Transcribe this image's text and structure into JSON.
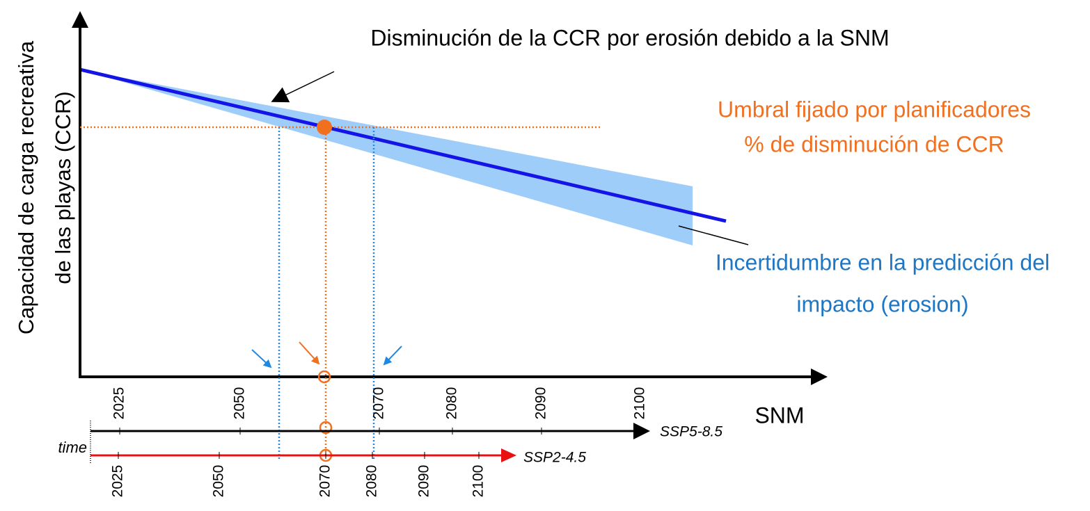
{
  "y_axis_label": [
    "Capacidad de carga recreativa",
    "de las playas (CCR)"
  ],
  "title": "Disminución de la CCR por erosión debido a la SNM",
  "threshold_label": [
    "Umbral fijado por planificadores",
    "% de disminución de CCR"
  ],
  "uncertainty_label": [
    "Incertidumbre en la predicción del",
    "impacto (erosion)"
  ],
  "x_axis_label": "SNM",
  "time_label": "time",
  "timelines": [
    {
      "name": "SSP5-8.5",
      "ticks": [
        "2025",
        "2050",
        "2070",
        "2080",
        "2090",
        "2100"
      ]
    },
    {
      "name": "SSP2-4.5",
      "ticks": [
        "2025",
        "2050",
        "2070",
        "2080",
        "2090",
        "2100"
      ]
    }
  ]
}
